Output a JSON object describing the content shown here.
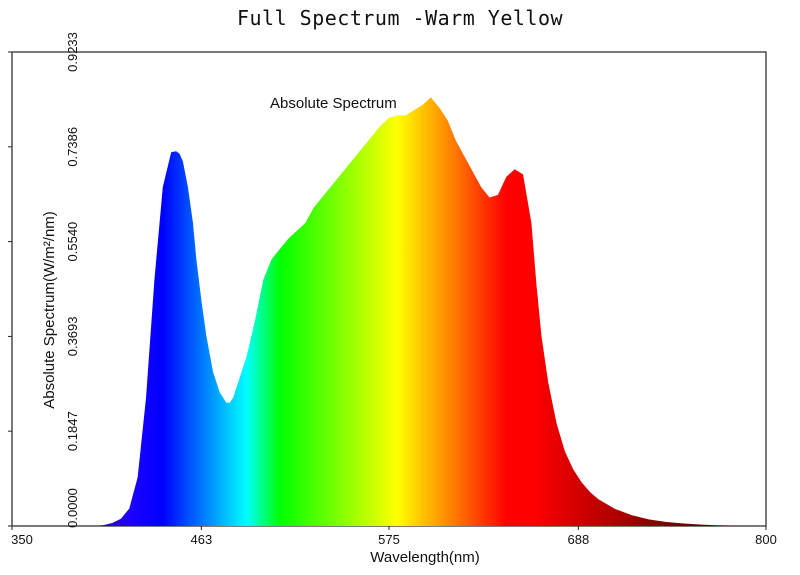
{
  "page": {
    "title": "Full Spectrum -Warm Yellow"
  },
  "chart_data": {
    "type": "area",
    "title": "Absolute Spectrum",
    "xlabel": "Wavelength(nm)",
    "ylabel": "Absolute Spectrum(W/m²/nm)",
    "xlim": [
      350,
      800
    ],
    "ylim": [
      0,
      0.9233
    ],
    "x_ticks": [
      350,
      463,
      575,
      688,
      800
    ],
    "x_tick_labels": [
      "350",
      "463",
      "575",
      "688",
      "800"
    ],
    "y_ticks": [
      0,
      0.1847,
      0.3693,
      0.554,
      0.7386,
      0.9233
    ],
    "y_tick_labels": [
      "0.0000",
      "0.1847",
      "0.3693",
      "0.5540",
      "0.7386",
      "0.9233"
    ],
    "grid": false,
    "fill": "wavelength-color-gradient",
    "series": [
      {
        "x": [
          350,
          400,
          405,
          410,
          415,
          420,
          425,
          430,
          435,
          440,
          445,
          448,
          450,
          452,
          455,
          458,
          460,
          463,
          466,
          470,
          474,
          478,
          480,
          482,
          484,
          486,
          490,
          495,
          500,
          505,
          510,
          515,
          520,
          525,
          530,
          540,
          550,
          555,
          560,
          565,
          570,
          575,
          580,
          585,
          590,
          595,
          600,
          605,
          610,
          615,
          620,
          625,
          630,
          635,
          640,
          645,
          650,
          655,
          660,
          663,
          666,
          670,
          675,
          680,
          685,
          690,
          695,
          700,
          710,
          720,
          730,
          740,
          750,
          760,
          770,
          780,
          790,
          800
        ],
        "values": [
          0,
          0,
          0.002,
          0.006,
          0.014,
          0.034,
          0.095,
          0.25,
          0.48,
          0.66,
          0.728,
          0.73,
          0.725,
          0.71,
          0.66,
          0.59,
          0.52,
          0.44,
          0.37,
          0.3,
          0.26,
          0.24,
          0.24,
          0.25,
          0.27,
          0.29,
          0.33,
          0.4,
          0.48,
          0.52,
          0.54,
          0.56,
          0.575,
          0.59,
          0.62,
          0.66,
          0.7,
          0.72,
          0.74,
          0.76,
          0.78,
          0.795,
          0.8,
          0.8,
          0.81,
          0.82,
          0.835,
          0.815,
          0.79,
          0.75,
          0.72,
          0.69,
          0.66,
          0.64,
          0.645,
          0.68,
          0.695,
          0.685,
          0.59,
          0.47,
          0.37,
          0.28,
          0.2,
          0.145,
          0.11,
          0.085,
          0.066,
          0.052,
          0.033,
          0.021,
          0.013,
          0.008,
          0.005,
          0.003,
          0.0015,
          0.0008,
          0.0003,
          0
        ]
      }
    ]
  }
}
